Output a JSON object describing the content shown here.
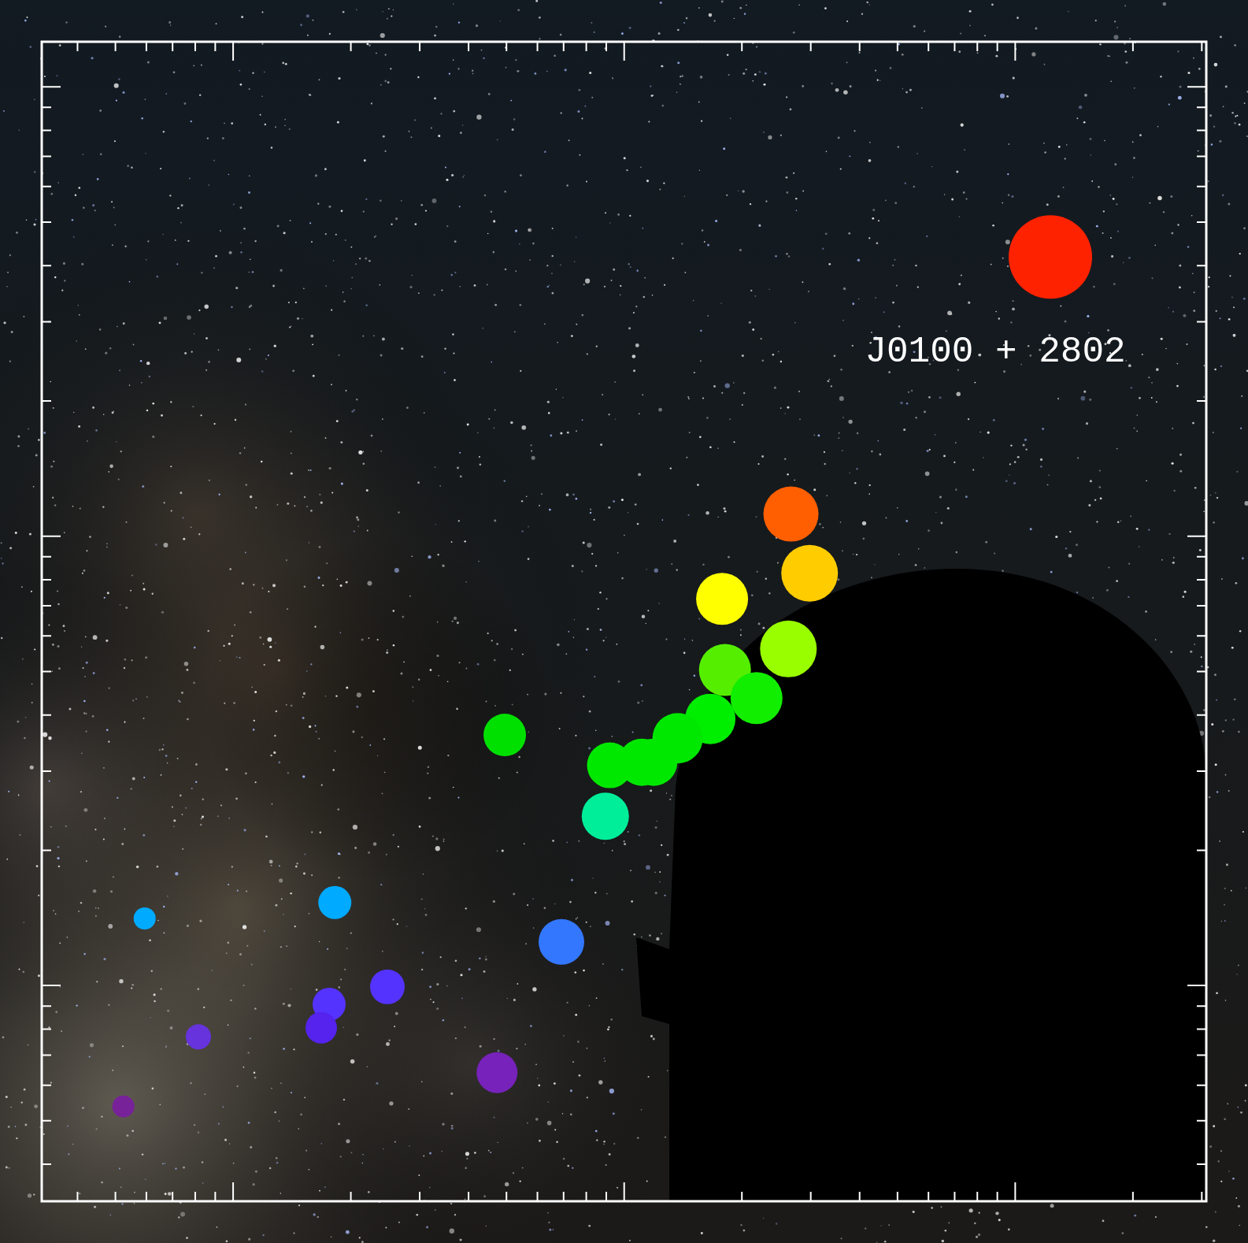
{
  "chart_data": {
    "type": "bubble",
    "x": [
      12300000000.0,
      2670000000.0,
      2980000000.0,
      1780000000.0,
      2630000000.0,
      1810000000.0,
      2180000000.0,
      1660000000.0,
      1370000000.0,
      495000000.0,
      1190000000.0,
      1110000000.0,
      919000000.0,
      895000000.0,
      182000000.0,
      59400000.0,
      691000000.0,
      248000000.0,
      176000000.0,
      168000000.0,
      81500000.0,
      473000000.0,
      52400000.0
    ],
    "values": [
      418000000000000.0,
      112000000000000.0,
      82700000000000.0,
      72500000000000.0,
      56100000000000.0,
      50400000000000.0,
      43600000000000.0,
      39200000000000.0,
      35500000000000.0,
      36100000000000.0,
      31400000000000.0,
      31400000000000.0,
      30900000000000.0,
      23800000000000.0,
      15300000000000.0,
      14100000000000.0,
      12500000000000.0,
      9930000000000.0,
      9080000000000.0,
      8050000000000.0,
      7690000000000.0,
      6400000000000.0,
      5380000000000.0
    ],
    "sizes": [
      53,
      35,
      36,
      33,
      36,
      33,
      33,
      32,
      32,
      27,
      30,
      30,
      29,
      30,
      21,
      14,
      29,
      22,
      21,
      20,
      16,
      26,
      14
    ],
    "colors": [
      "#ff2200",
      "#ff5f00",
      "#ffcc00",
      "#ffff00",
      "#99ff00",
      "#55ee00",
      "#11ee00",
      "#00ee00",
      "#00e800",
      "#00e000",
      "#00e800",
      "#00e800",
      "#00e800",
      "#00ee99",
      "#00aaff",
      "#00aaff",
      "#3377ff",
      "#5533ff",
      "#5533ff",
      "#5522ee",
      "#6633dd",
      "#7722bb",
      "#772299"
    ],
    "xlim": [
      32400000.0,
      30800000000.0
    ],
    "ylim": [
      3310000000000.0,
      1260000000000000.0
    ],
    "xticks": [
      100000000,
      1000000000,
      10000000000
    ],
    "yticks": [
      10000000000000,
      100000000000000,
      1000000000000000
    ],
    "log": true,
    "grid": false,
    "tick_labels": false,
    "annotations": [
      {
        "text": "J0100 + 2802",
        "x": 12300000000.0,
        "y": 418000000000000.0
      }
    ]
  }
}
